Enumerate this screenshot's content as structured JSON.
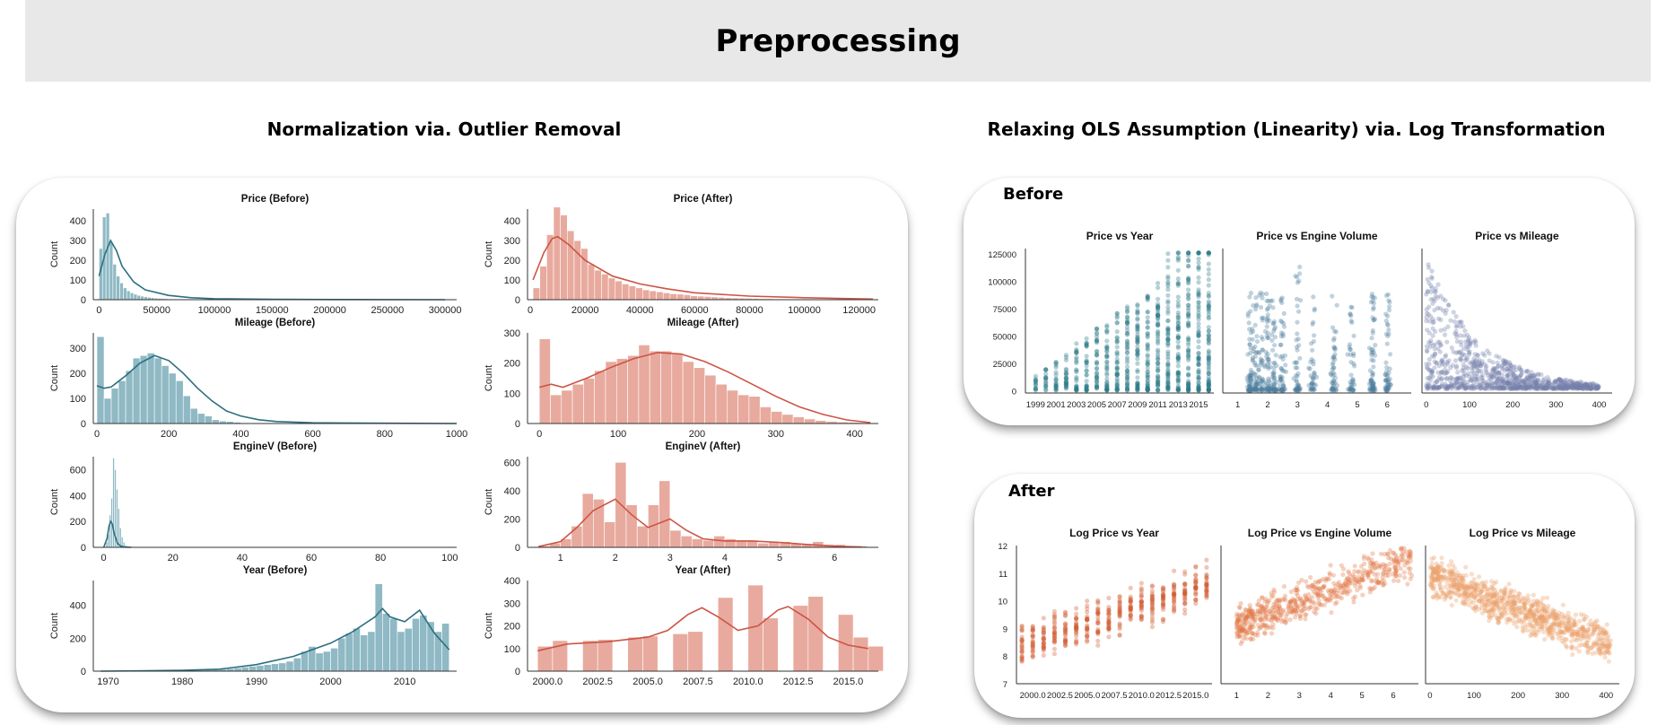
{
  "header": {
    "title": "Preprocessing"
  },
  "sections": {
    "left_title": "Normalization via. Outlier Removal",
    "right_title": "Relaxing OLS Assumption (Linearity) via. Log Transformation"
  },
  "panels": {
    "before_label": "Before",
    "after_label": "After"
  },
  "colors": {
    "before_hist": "#8fb9c4",
    "before_kde": "#2b6f7f",
    "after_hist": "#e8aa9e",
    "after_kde": "#cc5444",
    "scatter_teal": "#2d7a8a",
    "scatter_steel": "#4e7f9e",
    "scatter_slate": "#7582ad",
    "scatter_rust": "#d05c32",
    "scatter_orange": "#e37a4a",
    "scatter_peach": "#eaa06a"
  },
  "chart_data": [
    {
      "type": "bar",
      "title": "Price (Before)",
      "ylabel": "Count",
      "xlim": [
        -5000,
        310000
      ],
      "ylim": [
        0,
        460
      ],
      "xticks": [
        0,
        50000,
        100000,
        150000,
        200000,
        250000,
        300000
      ],
      "yticks": [
        0,
        100,
        200,
        300,
        400
      ],
      "hist_color": "#8fb9c4",
      "kde_color": "#2b6f7f",
      "bins": {
        "start": 0,
        "width": 3000,
        "counts": [
          260,
          420,
          440,
          290,
          180,
          120,
          85,
          60,
          45,
          35,
          28,
          22,
          18,
          15,
          12,
          10,
          8,
          7,
          6,
          5,
          4,
          4,
          3,
          3,
          2,
          2,
          2,
          2,
          1,
          1,
          1,
          1,
          1,
          1,
          1,
          1,
          1,
          1,
          1,
          1
        ]
      },
      "kde": {
        "x": [
          0,
          5000,
          10000,
          15000,
          20000,
          30000,
          40000,
          60000,
          80000,
          100000,
          150000,
          200000,
          300000
        ],
        "y": [
          120,
          230,
          300,
          250,
          170,
          90,
          50,
          22,
          10,
          5,
          2,
          1,
          0
        ]
      }
    },
    {
      "type": "bar",
      "title": "Price (After)",
      "ylabel": "Count",
      "xlim": [
        -1000,
        127000
      ],
      "ylim": [
        0,
        460
      ],
      "xticks": [
        0,
        20000,
        40000,
        60000,
        80000,
        100000,
        120000
      ],
      "yticks": [
        0,
        100,
        200,
        300,
        400
      ],
      "hist_color": "#e8aa9e",
      "kde_color": "#cc5444",
      "bins": {
        "start": 1000,
        "width": 2500,
        "counts": [
          60,
          170,
          330,
          470,
          430,
          350,
          300,
          260,
          180,
          150,
          130,
          110,
          95,
          80,
          70,
          60,
          50,
          45,
          40,
          35,
          30,
          28,
          25,
          20,
          18,
          16,
          14,
          12,
          10,
          9,
          8,
          7,
          6,
          5,
          5,
          4,
          4,
          3,
          3,
          3,
          2,
          2,
          2,
          2,
          2,
          1,
          1,
          1
        ]
      },
      "kde": {
        "x": [
          1000,
          5000,
          8000,
          10000,
          14000,
          20000,
          30000,
          40000,
          50000,
          60000,
          80000,
          100000,
          125000
        ],
        "y": [
          100,
          240,
          310,
          320,
          280,
          200,
          120,
          80,
          55,
          35,
          18,
          10,
          3
        ]
      }
    },
    {
      "type": "bar",
      "title": "Mileage (Before)",
      "ylabel": "Count",
      "xlim": [
        -10,
        1000
      ],
      "ylim": [
        0,
        360
      ],
      "xticks": [
        0,
        200,
        400,
        600,
        800,
        1000
      ],
      "yticks": [
        0,
        100,
        200,
        300
      ],
      "hist_color": "#8fb9c4",
      "kde_color": "#2b6f7f",
      "bins": {
        "start": 0,
        "width": 20,
        "counts": [
          345,
          100,
          140,
          170,
          210,
          260,
          270,
          280,
          260,
          230,
          200,
          170,
          110,
          60,
          40,
          30,
          15,
          10,
          8,
          5,
          3,
          2,
          2,
          1,
          1,
          1,
          1,
          1,
          1,
          1
        ]
      },
      "kde": {
        "x": [
          0,
          20,
          40,
          80,
          120,
          160,
          200,
          240,
          280,
          320,
          360,
          400,
          450,
          500,
          600,
          800,
          1000
        ],
        "y": [
          150,
          140,
          145,
          190,
          240,
          270,
          250,
          200,
          140,
          90,
          50,
          30,
          15,
          8,
          3,
          1,
          0
        ]
      }
    },
    {
      "type": "bar",
      "title": "Mileage (After)",
      "ylabel": "Count",
      "xlim": [
        -15,
        430
      ],
      "ylim": [
        0,
        300
      ],
      "xticks": [
        0,
        100,
        200,
        300,
        400
      ],
      "yticks": [
        0,
        100,
        200,
        300
      ],
      "hist_color": "#e8aa9e",
      "kde_color": "#cc5444",
      "bins": {
        "start": 0,
        "width": 14,
        "counts": [
          280,
          95,
          110,
          130,
          150,
          175,
          205,
          215,
          225,
          260,
          240,
          240,
          230,
          205,
          185,
          160,
          130,
          110,
          95,
          90,
          55,
          40,
          30,
          22,
          15,
          10,
          7,
          5,
          4,
          3
        ]
      },
      "kde": {
        "x": [
          0,
          15,
          30,
          60,
          90,
          120,
          150,
          180,
          210,
          240,
          270,
          300,
          330,
          360,
          390,
          420
        ],
        "y": [
          120,
          130,
          120,
          150,
          185,
          215,
          235,
          230,
          205,
          170,
          130,
          90,
          55,
          30,
          12,
          3
        ]
      }
    },
    {
      "type": "bar",
      "title": "EngineV (Before)",
      "ylabel": "Count",
      "xlim": [
        -3,
        102
      ],
      "ylim": [
        0,
        700
      ],
      "xticks": [
        0,
        20,
        40,
        60,
        80,
        100
      ],
      "yticks": [
        0,
        200,
        400,
        600
      ],
      "hist_color": "#8fb9c4",
      "kde_color": "#2b6f7f",
      "bins": {
        "start": 0.6,
        "width": 0.5,
        "counts": [
          40,
          100,
          250,
          380,
          690,
          600,
          450,
          300,
          150,
          80,
          40,
          20,
          10,
          5
        ]
      },
      "kde": {
        "x": [
          0,
          1,
          1.5,
          2,
          2.5,
          3,
          4,
          5,
          6,
          8
        ],
        "y": [
          0,
          70,
          160,
          200,
          180,
          110,
          30,
          8,
          2,
          0
        ]
      }
    },
    {
      "type": "bar",
      "title": "EngineV (After)",
      "ylabel": "Count",
      "xlim": [
        0.4,
        6.8
      ],
      "ylim": [
        0,
        640
      ],
      "xticks": [
        1,
        2,
        3,
        4,
        5,
        6
      ],
      "yticks": [
        0,
        200,
        400,
        600
      ],
      "hist_color": "#e8aa9e",
      "kde_color": "#cc5444",
      "bins": {
        "start": 0.6,
        "width": 0.2,
        "counts": [
          10,
          30,
          60,
          150,
          380,
          340,
          180,
          600,
          300,
          150,
          300,
          470,
          120,
          80,
          60,
          50,
          80,
          60,
          50,
          50,
          30,
          40,
          40,
          30,
          20,
          40,
          20,
          20,
          10,
          10
        ]
      },
      "kde": {
        "x": [
          0.6,
          1,
          1.3,
          1.6,
          2,
          2.3,
          2.6,
          3,
          3.3,
          3.6,
          4,
          4.5,
          5,
          5.5,
          6,
          6.5
        ],
        "y": [
          5,
          40,
          140,
          260,
          340,
          230,
          140,
          200,
          120,
          60,
          45,
          45,
          35,
          20,
          8,
          2
        ]
      }
    },
    {
      "type": "bar",
      "title": "Year (Before)",
      "ylabel": "Count",
      "xlim": [
        1968,
        2017
      ],
      "ylim": [
        0,
        550
      ],
      "xticks": [
        1970,
        1980,
        1990,
        2000,
        2010
      ],
      "yticks": [
        0,
        200,
        400
      ],
      "hist_color": "#8fb9c4",
      "kde_color": "#2b6f7f",
      "bins": {
        "start": 1969,
        "width": 1,
        "counts": [
          1,
          0,
          0,
          1,
          0,
          1,
          1,
          2,
          2,
          3,
          2,
          4,
          5,
          6,
          8,
          10,
          12,
          16,
          20,
          25,
          30,
          35,
          40,
          45,
          50,
          60,
          80,
          120,
          150,
          110,
          120,
          140,
          200,
          230,
          260,
          220,
          240,
          530,
          350,
          320,
          240,
          260,
          320,
          340,
          300,
          240,
          290
        ]
      },
      "kde": {
        "x": [
          1969,
          1975,
          1980,
          1985,
          1990,
          1995,
          2000,
          2003,
          2006,
          2007,
          2008,
          2010,
          2012,
          2014,
          2016
        ],
        "y": [
          0,
          2,
          5,
          12,
          40,
          90,
          170,
          240,
          330,
          380,
          330,
          300,
          370,
          230,
          130
        ]
      }
    },
    {
      "type": "bar",
      "title": "Year (After)",
      "ylabel": "Count",
      "xlim": [
        1999,
        2016.5
      ],
      "ylim": [
        0,
        400
      ],
      "xticks": [
        2000.0,
        2002.5,
        2005.0,
        2007.5,
        2010.0,
        2012.5,
        2015.0
      ],
      "yticks": [
        0,
        100,
        200,
        300,
        400
      ],
      "hist_color": "#e8aa9e",
      "kde_color": "#cc5444",
      "bins": {
        "start": 1999.5,
        "width": 0.75,
        "counts": [
          110,
          135,
          0,
          135,
          140,
          0,
          150,
          155,
          0,
          165,
          175,
          0,
          325,
          0,
          380,
          235,
          0,
          290,
          330,
          0,
          250,
          150,
          110,
          0,
          185
        ]
      },
      "kde": {
        "x": [
          1999.5,
          2001,
          2003,
          2005,
          2006,
          2007,
          2007.7,
          2008.5,
          2009.5,
          2010.5,
          2011.5,
          2012,
          2013,
          2014,
          2015,
          2016
        ],
        "y": [
          90,
          120,
          130,
          150,
          180,
          250,
          280,
          240,
          180,
          200,
          270,
          285,
          230,
          150,
          115,
          100
        ]
      }
    },
    {
      "type": "scatter",
      "title": "Price vs Year",
      "xticks": [
        1999,
        2001,
        2003,
        2005,
        2007,
        2009,
        2011,
        2013,
        2015
      ],
      "yticks": [
        0,
        25000,
        50000,
        75000,
        100000,
        125000
      ],
      "xlim": [
        1998,
        2016.5
      ],
      "ylim": [
        -2000,
        130000
      ],
      "color": "#2d7a8a",
      "mode": "year",
      "low": [
        0,
        1000,
        2000,
        3000,
        4000,
        5000,
        6000,
        7000,
        8000,
        9000,
        10000,
        11000,
        12000,
        13000,
        14000,
        15000,
        16000
      ],
      "high": [
        15000,
        18000,
        20000,
        25000,
        30000,
        40000,
        45000,
        50000,
        55000,
        60000,
        70000,
        80000,
        90000,
        100000,
        115000,
        125000,
        125000
      ]
    },
    {
      "type": "scatter",
      "title": "Price vs Engine Volume",
      "xticks": [
        1,
        2,
        3,
        4,
        5,
        6
      ],
      "xlim": [
        0.5,
        6.8
      ],
      "ylim": [
        -2000,
        130000
      ],
      "color": "#4e7f9e",
      "mode": "engine",
      "dense": [
        1.4,
        1.6,
        1.8,
        2,
        2.2,
        2.5,
        3,
        3.5,
        4.2,
        4.8,
        5.5
      ],
      "dmax": [
        30000,
        50000,
        80000,
        90000,
        70000,
        60000,
        125000,
        80000,
        90000,
        100000,
        80000
      ]
    },
    {
      "type": "scatter",
      "title": "Price vs Mileage",
      "xticks": [
        0,
        100,
        200,
        300,
        400
      ],
      "xlim": [
        -10,
        430
      ],
      "ylim": [
        -2000,
        130000
      ],
      "color": "#7582ad",
      "mode": "mileage"
    },
    {
      "type": "scatter",
      "title": "Log Price vs Year",
      "xticks": [
        2000.0,
        2002.5,
        2005.0,
        2007.5,
        2010.0,
        2012.5,
        2015.0
      ],
      "yticks": [
        7,
        8,
        9,
        10,
        11,
        12
      ],
      "xlim": [
        1998.5,
        2016.5
      ],
      "ylim": [
        7,
        12
      ],
      "color": "#d05c32",
      "mode": "logyear"
    },
    {
      "type": "scatter",
      "title": "Log Price vs Engine Volume",
      "xticks": [
        1,
        2,
        3,
        4,
        5,
        6
      ],
      "xlim": [
        0.5,
        6.8
      ],
      "ylim": [
        7,
        12
      ],
      "color": "#e37a4a",
      "mode": "logengine"
    },
    {
      "type": "scatter",
      "title": "Log Price vs Mileage",
      "xticks": [
        0,
        100,
        200,
        300,
        400
      ],
      "xlim": [
        -10,
        430
      ],
      "ylim": [
        7,
        12
      ],
      "color": "#eaa06a",
      "mode": "logmileage"
    }
  ]
}
